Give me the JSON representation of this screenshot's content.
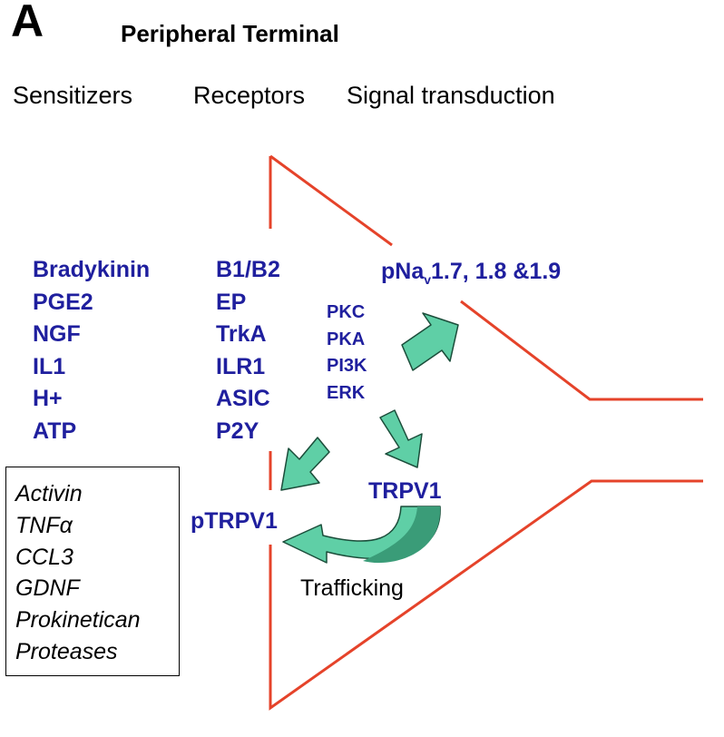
{
  "panel": {
    "letter": "A",
    "title": "Peripheral Terminal"
  },
  "column_headers": {
    "sensitizers": "Sensitizers",
    "receptors": "Receptors",
    "signal_transduction": "Signal transduction"
  },
  "sensitizers": [
    "Bradykinin",
    "PGE2",
    "NGF",
    "IL1",
    "H+",
    "ATP"
  ],
  "receptors": [
    "B1/B2",
    "EP",
    "TrkA",
    "ILR1",
    "ASIC",
    "P2Y"
  ],
  "kinases": [
    "PKC",
    "PKA",
    "PI3K",
    "ERK"
  ],
  "channels": {
    "nav_prefix": "pNa",
    "nav_sub": "v",
    "nav_suffix": "1.7, 1.8 &1.9",
    "trpv1": "TRPV1",
    "ptrpv1": "pTRPV1"
  },
  "trafficking_label": "Trafficking",
  "other_sensitizers": [
    "Activin",
    "TNFα",
    "CCL3",
    "GDNF",
    "Prokinetican",
    "Proteases"
  ],
  "colors": {
    "label_blue": "#1f1f9e",
    "membrane_red": "#e5432a",
    "arrow_fill": "#5fcfa6",
    "arrow_dark": "#3a9c78",
    "arrow_stroke": "#1b4d3a"
  }
}
